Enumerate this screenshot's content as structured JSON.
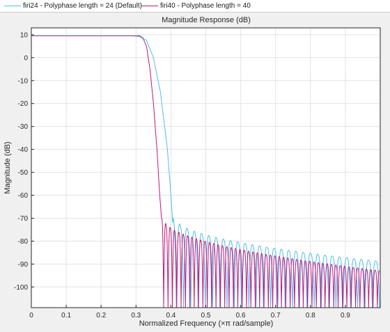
{
  "legend": {
    "items": [
      {
        "label": "firi24 - Polyphase length = 24 (Default)",
        "color": "#4dbeee"
      },
      {
        "label": "firi40 - Polyphase length = 40",
        "color": "#c0187c"
      }
    ]
  },
  "chart_data": {
    "type": "line",
    "title": "Magnitude Response (dB)",
    "xlabel": "Normalized Frequency (×π rad/sample)",
    "ylabel": "Magnitude (dB)",
    "xlim": [
      0,
      1
    ],
    "ylim": [
      -109,
      13
    ],
    "xticks": [
      0,
      0.1,
      0.2,
      0.3,
      0.4,
      0.5,
      0.6,
      0.7,
      0.8,
      0.9
    ],
    "xtick_labels": [
      "0",
      "0.1",
      "0.2",
      "0.3",
      "0.4",
      "0.5",
      "0.6",
      "0.7",
      "0.8",
      "0.9"
    ],
    "yticks": [
      10,
      0,
      -10,
      -20,
      -30,
      -40,
      -50,
      -60,
      -70,
      -80,
      -90,
      -100
    ],
    "ytick_labels": [
      "10",
      "0",
      "-10",
      "-20",
      "-30",
      "-40",
      "-50",
      "-60",
      "-70",
      "-80",
      "-90",
      "-100"
    ],
    "grid": true,
    "series": [
      {
        "name": "firi24 - Polyphase length = 24 (Default)",
        "color": "#4dbeee",
        "passband_db": 9.5,
        "x": [
          0,
          0.29,
          0.31,
          0.33,
          0.35,
          0.37,
          0.39,
          0.4,
          0.405
        ],
        "y": [
          9.5,
          9.5,
          9.2,
          7.5,
          0,
          -15,
          -40,
          -60,
          -72
        ],
        "lobes": {
          "start": 0.405,
          "end": 1.0,
          "period": 0.0208,
          "peak_start": -70,
          "peak_end": -89,
          "floor": -109
        }
      },
      {
        "name": "firi40 - Polyphase length = 40",
        "color": "#c0187c",
        "passband_db": 9.5,
        "x": [
          0,
          0.3,
          0.31,
          0.32,
          0.33,
          0.34,
          0.35,
          0.36,
          0.368,
          0.373
        ],
        "y": [
          9.5,
          9.5,
          9.6,
          8.5,
          5,
          -5,
          -20,
          -40,
          -60,
          -70
        ],
        "lobes": {
          "start": 0.373,
          "end": 1.0,
          "period": 0.0125,
          "peak_start": -70,
          "peak_end": -93,
          "floor": -109
        }
      }
    ]
  }
}
